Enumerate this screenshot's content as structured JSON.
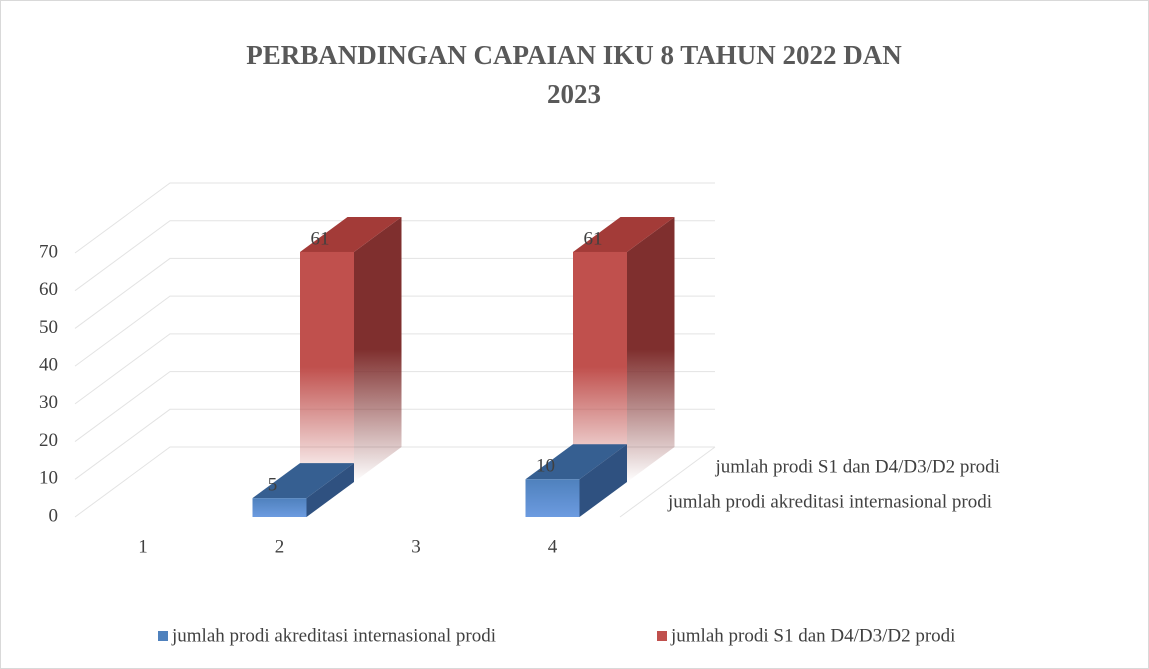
{
  "chart_data": {
    "type": "bar3d",
    "title": "PERBANDINGAN CAPAIAN IKU 8 TAHUN 2022 DAN 2023",
    "categories": [
      "1",
      "2",
      "3",
      "4"
    ],
    "series": [
      {
        "name": "jumlah prodi akreditasi internasional prodi",
        "color": "#4f81bd",
        "values": [
          null,
          5,
          null,
          10
        ]
      },
      {
        "name": "jumlah prodi S1 dan D4/D3/D2 prodi",
        "color": "#c0504d",
        "values": [
          null,
          61,
          null,
          61
        ]
      }
    ],
    "ylim": [
      0,
      70
    ],
    "yticks": [
      0,
      10,
      20,
      30,
      40,
      50,
      60,
      70
    ],
    "grid": true,
    "legend": "bottom"
  }
}
